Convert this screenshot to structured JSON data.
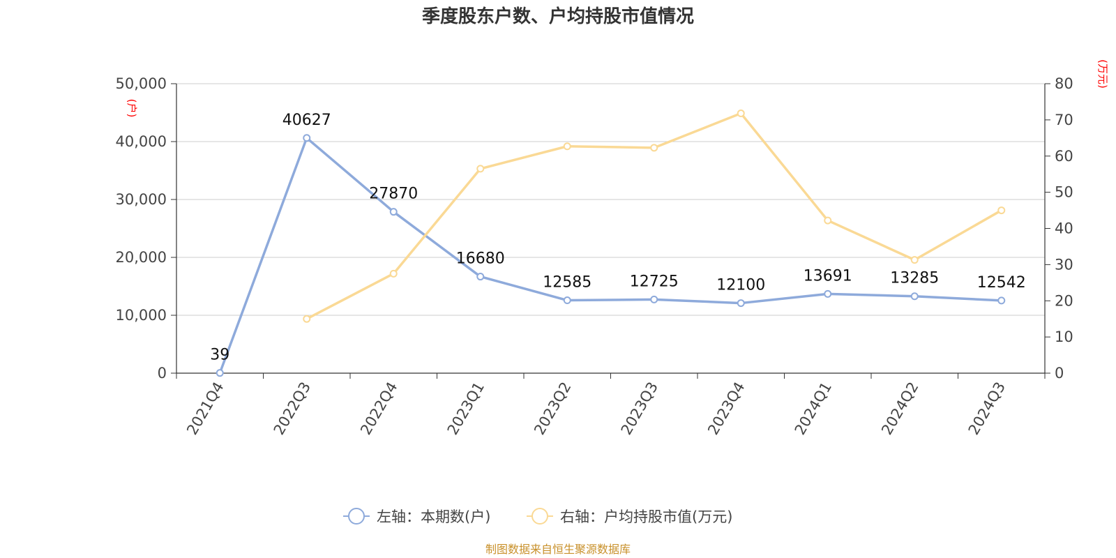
{
  "chart_data": {
    "type": "line",
    "title": "季度股东户数、户均持股市值情况",
    "categories": [
      "2021Q4",
      "2022Q3",
      "2022Q4",
      "2023Q1",
      "2023Q2",
      "2023Q3",
      "2023Q4",
      "2024Q1",
      "2024Q2",
      "2024Q3"
    ],
    "left_axis": {
      "unit": "(户)",
      "ylim": [
        0,
        50000
      ],
      "ticks": [
        "0",
        "10,000",
        "20,000",
        "30,000",
        "40,000",
        "50,000"
      ],
      "tick_values": [
        0,
        10000,
        20000,
        30000,
        40000,
        50000
      ]
    },
    "right_axis": {
      "unit": "(万元)",
      "ylim": [
        0,
        80
      ],
      "ticks": [
        "0",
        "10",
        "20",
        "30",
        "40",
        "50",
        "60",
        "70",
        "80"
      ],
      "tick_values": [
        0,
        10,
        20,
        30,
        40,
        50,
        60,
        70,
        80
      ]
    },
    "series": [
      {
        "name": "左轴：本期数(户)",
        "axis": "left",
        "color": "#8eaadb",
        "values": [
          39,
          40627,
          27870,
          16680,
          12585,
          12725,
          12100,
          13691,
          13285,
          12542
        ],
        "labels": [
          "39",
          "40627",
          "27870",
          "16680",
          "12585",
          "12725",
          "12100",
          "13691",
          "13285",
          "12542"
        ]
      },
      {
        "name": "右轴：户均持股市值(万元)",
        "axis": "right",
        "color": "#fad995",
        "values": [
          null,
          15.0,
          27.5,
          56.5,
          62.7,
          62.3,
          71.8,
          42.2,
          31.3,
          45.0
        ]
      }
    ],
    "grid": true,
    "legend_position": "bottom"
  },
  "source_text": "制图数据来自恒生聚源数据库"
}
